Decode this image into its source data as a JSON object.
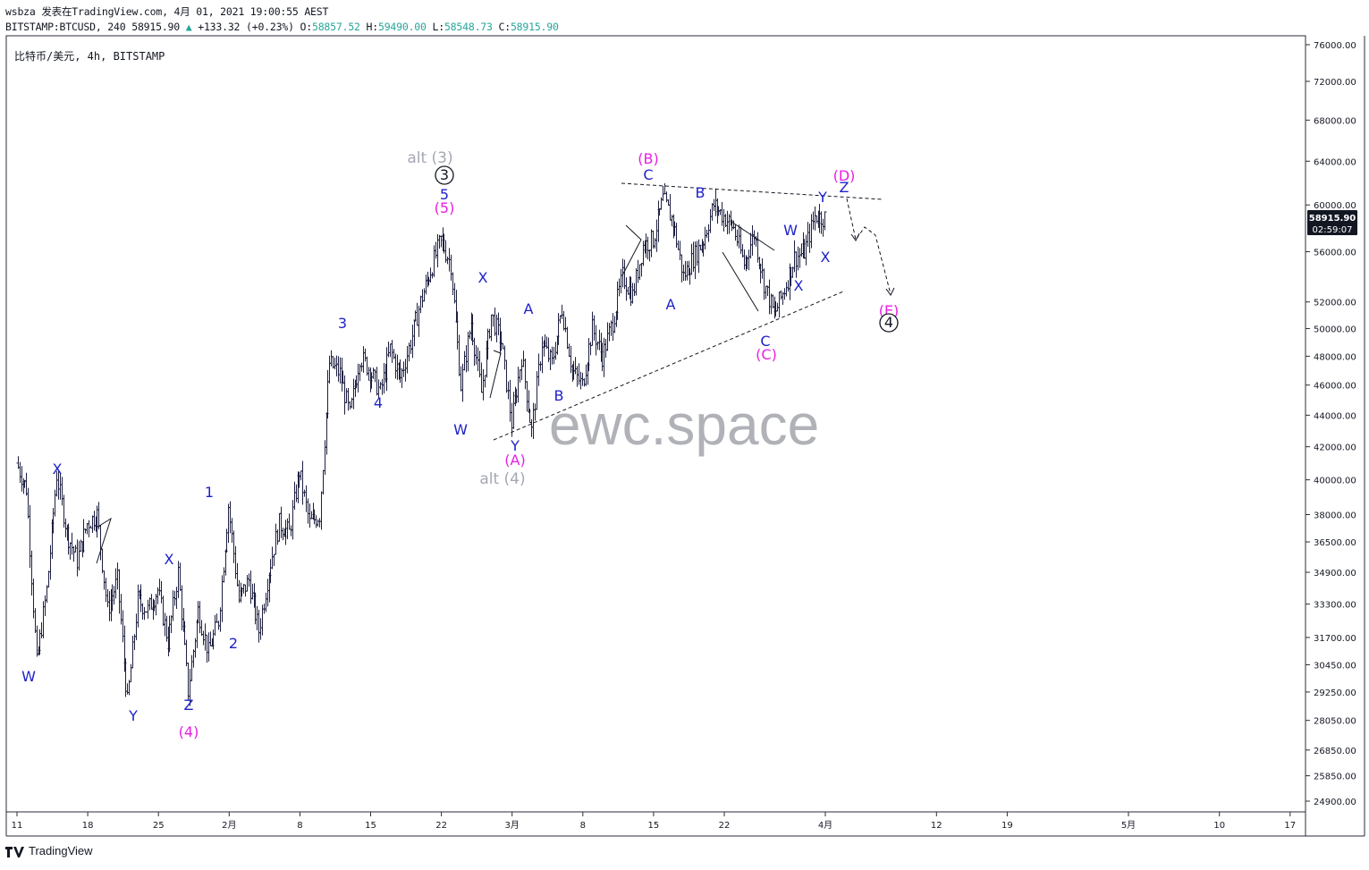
{
  "header": {
    "line1": "wsbza 发表在TradingView.com, 4月 01, 2021 19:00:55 AEST",
    "symbol": "BITSTAMP:BTCUSD, 240",
    "last": "58915.90",
    "change": "+133.32 (+0.23%)",
    "open_label": "O:",
    "open": "58857.52",
    "high_label": "H:",
    "high": "59490.00",
    "low_label": "L:",
    "low": "58548.73",
    "close_label": "C:",
    "close": "58915.90"
  },
  "symbol_label": "比特币/美元, 4h, BITSTAMP",
  "watermark": "ewc.space",
  "footer": {
    "brand": "TradingView"
  },
  "colors": {
    "wave_blue": "#1e22c8",
    "wave_magenta": "#e91ee3",
    "wave_gray": "#a5a8b3",
    "candle": "#1e2040",
    "price_tag": "#131722"
  },
  "chart_data": {
    "type": "candlestick",
    "title": "",
    "scale": "log",
    "ylim": [
      24300,
      77000
    ],
    "y_ticks": [
      76000,
      72000,
      68000,
      64000,
      60000,
      56000,
      52000,
      50000,
      48000,
      46000,
      44000,
      42000,
      40000,
      38000,
      36500,
      34900,
      33300,
      31700,
      30450,
      29250,
      28050,
      26850,
      25850,
      24900
    ],
    "x_ticks": [
      {
        "label": "11",
        "day": 0
      },
      {
        "label": "18",
        "day": 7
      },
      {
        "label": "25",
        "day": 14
      },
      {
        "label": "2月",
        "day": 21
      },
      {
        "label": "8",
        "day": 28
      },
      {
        "label": "15",
        "day": 35
      },
      {
        "label": "22",
        "day": 42
      },
      {
        "label": "3月",
        "day": 49
      },
      {
        "label": "8",
        "day": 56
      },
      {
        "label": "15",
        "day": 63
      },
      {
        "label": "22",
        "day": 70
      },
      {
        "label": "4月",
        "day": 80
      },
      {
        "label": "12",
        "day": 91
      },
      {
        "label": "19",
        "day": 98
      },
      {
        "label": "5月",
        "day": 110
      },
      {
        "label": "10",
        "day": 119
      },
      {
        "label": "17",
        "day": 126
      }
    ],
    "price_tag": {
      "value": 58915.9,
      "price": "58915.90",
      "countdown": "02:59:07"
    },
    "swing_points": [
      [
        0,
        41000
      ],
      [
        1,
        39500
      ],
      [
        2,
        30500
      ],
      [
        3,
        34000
      ],
      [
        4,
        40300
      ],
      [
        5,
        37000
      ],
      [
        6,
        35500
      ],
      [
        7,
        37500
      ],
      [
        8,
        38000
      ],
      [
        9,
        33000
      ],
      [
        10,
        34500
      ],
      [
        11,
        28800
      ],
      [
        12,
        33500
      ],
      [
        13,
        33000
      ],
      [
        14,
        34000
      ],
      [
        15,
        31500
      ],
      [
        16,
        34900
      ],
      [
        17,
        29300
      ],
      [
        18,
        33000
      ],
      [
        19,
        31000
      ],
      [
        20,
        32500
      ],
      [
        21,
        38500
      ],
      [
        22,
        33500
      ],
      [
        23,
        34500
      ],
      [
        24,
        32000
      ],
      [
        25,
        35000
      ],
      [
        26,
        37500
      ],
      [
        27,
        37000
      ],
      [
        28,
        40500
      ],
      [
        29,
        37500
      ],
      [
        30,
        38000
      ],
      [
        31,
        47500
      ],
      [
        32,
        46800
      ],
      [
        33,
        44000
      ],
      [
        34,
        48000
      ],
      [
        35,
        47000
      ],
      [
        36,
        45500
      ],
      [
        37,
        48500
      ],
      [
        38,
        46500
      ],
      [
        39,
        49000
      ],
      [
        40,
        52000
      ],
      [
        41,
        54500
      ],
      [
        42,
        57000
      ],
      [
        43,
        55000
      ],
      [
        44,
        46000
      ],
      [
        45,
        50500
      ],
      [
        46,
        45500
      ],
      [
        47,
        51000
      ],
      [
        48,
        49000
      ],
      [
        49,
        43500
      ],
      [
        50,
        48000
      ],
      [
        51,
        43000
      ],
      [
        52,
        49000
      ],
      [
        53,
        47500
      ],
      [
        54,
        51500
      ],
      [
        55,
        47000
      ],
      [
        56,
        46000
      ],
      [
        57,
        50000
      ],
      [
        58,
        48000
      ],
      [
        59,
        50500
      ],
      [
        60,
        54000
      ],
      [
        61,
        52500
      ],
      [
        62,
        56500
      ],
      [
        63,
        57000
      ],
      [
        64,
        60500
      ],
      [
        65,
        58500
      ],
      [
        66,
        54000
      ],
      [
        67,
        55500
      ],
      [
        68,
        57000
      ],
      [
        69,
        60000
      ],
      [
        70,
        59000
      ],
      [
        71,
        58000
      ],
      [
        72,
        55000
      ],
      [
        73,
        57500
      ],
      [
        74,
        53500
      ],
      [
        75,
        51000
      ],
      [
        76,
        53000
      ],
      [
        77,
        55500
      ],
      [
        78,
        56000
      ],
      [
        79,
        59000
      ],
      [
        80,
        58900
      ]
    ],
    "wave_labels": [
      {
        "text": "W",
        "color": "blue"
      },
      {
        "text": "X",
        "color": "blue"
      },
      {
        "text": "Y",
        "color": "blue"
      },
      {
        "text": "X",
        "color": "blue"
      },
      {
        "text": "Z",
        "color": "blue"
      },
      {
        "text": "(4)",
        "color": "magenta"
      },
      {
        "text": "1",
        "color": "blue"
      },
      {
        "text": "2",
        "color": "blue"
      },
      {
        "text": "3",
        "color": "blue"
      },
      {
        "text": "4",
        "color": "blue"
      },
      {
        "text": "alt (3)",
        "color": "gray"
      },
      {
        "text": "3",
        "color": "black",
        "circled": true
      },
      {
        "text": "5",
        "color": "blue"
      },
      {
        "text": "(5)",
        "color": "magenta"
      },
      {
        "text": "X",
        "color": "blue"
      },
      {
        "text": "W",
        "color": "blue"
      },
      {
        "text": "Y",
        "color": "blue"
      },
      {
        "text": "(A)",
        "color": "magenta"
      },
      {
        "text": "alt (4)",
        "color": "gray"
      },
      {
        "text": "A",
        "color": "blue"
      },
      {
        "text": "B",
        "color": "blue"
      },
      {
        "text": "(B)",
        "color": "magenta"
      },
      {
        "text": "C",
        "color": "blue"
      },
      {
        "text": "A",
        "color": "blue"
      },
      {
        "text": "B",
        "color": "blue"
      },
      {
        "text": "C",
        "color": "blue"
      },
      {
        "text": "(C)",
        "color": "magenta"
      },
      {
        "text": "W",
        "color": "blue"
      },
      {
        "text": "X",
        "color": "blue"
      },
      {
        "text": "Y",
        "color": "blue"
      },
      {
        "text": "X",
        "color": "blue"
      },
      {
        "text": "Z",
        "color": "blue"
      },
      {
        "text": "(D)",
        "color": "magenta"
      },
      {
        "text": "(E)",
        "color": "magenta"
      },
      {
        "text": "4",
        "color": "black",
        "circled": true
      }
    ]
  }
}
